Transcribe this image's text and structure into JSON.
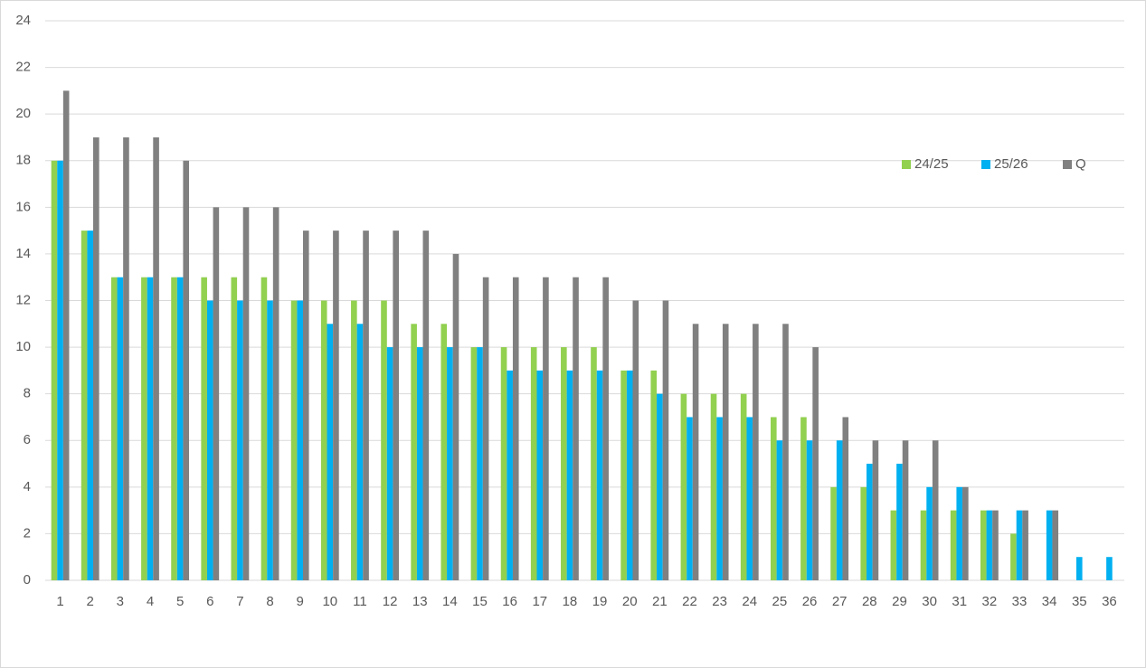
{
  "chart_data": {
    "type": "bar",
    "categories": [
      "1",
      "2",
      "3",
      "4",
      "5",
      "6",
      "7",
      "8",
      "9",
      "10",
      "11",
      "12",
      "13",
      "14",
      "15",
      "16",
      "17",
      "18",
      "19",
      "20",
      "21",
      "22",
      "23",
      "24",
      "25",
      "26",
      "27",
      "28",
      "29",
      "30",
      "31",
      "32",
      "33",
      "34",
      "35",
      "36"
    ],
    "series": [
      {
        "name": "24/25",
        "color": "#92d050",
        "values": [
          18,
          15,
          13,
          13,
          13,
          13,
          13,
          13,
          12,
          12,
          12,
          12,
          11,
          11,
          10,
          10,
          10,
          10,
          10,
          9,
          9,
          8,
          8,
          8,
          7,
          7,
          4,
          4,
          3,
          3,
          3,
          3,
          2,
          null,
          null,
          null
        ]
      },
      {
        "name": "25/26",
        "color": "#00b0f0",
        "values": [
          18,
          15,
          13,
          13,
          13,
          12,
          12,
          12,
          12,
          11,
          11,
          10,
          10,
          10,
          10,
          9,
          9,
          9,
          9,
          9,
          8,
          7,
          7,
          7,
          6,
          6,
          6,
          5,
          5,
          4,
          4,
          3,
          3,
          3,
          1,
          1
        ]
      },
      {
        "name": "Q",
        "color": "#808080",
        "values": [
          21,
          19,
          19,
          19,
          18,
          16,
          16,
          16,
          15,
          15,
          15,
          15,
          15,
          14,
          13,
          13,
          13,
          13,
          13,
          12,
          12,
          11,
          11,
          11,
          11,
          10,
          7,
          6,
          6,
          6,
          4,
          3,
          3,
          3,
          null,
          null
        ]
      }
    ],
    "ylim": [
      0,
      24
    ],
    "yticks": [
      0,
      2,
      4,
      6,
      8,
      10,
      12,
      14,
      16,
      18,
      20,
      22,
      24
    ],
    "grid": true,
    "legend": "right"
  }
}
